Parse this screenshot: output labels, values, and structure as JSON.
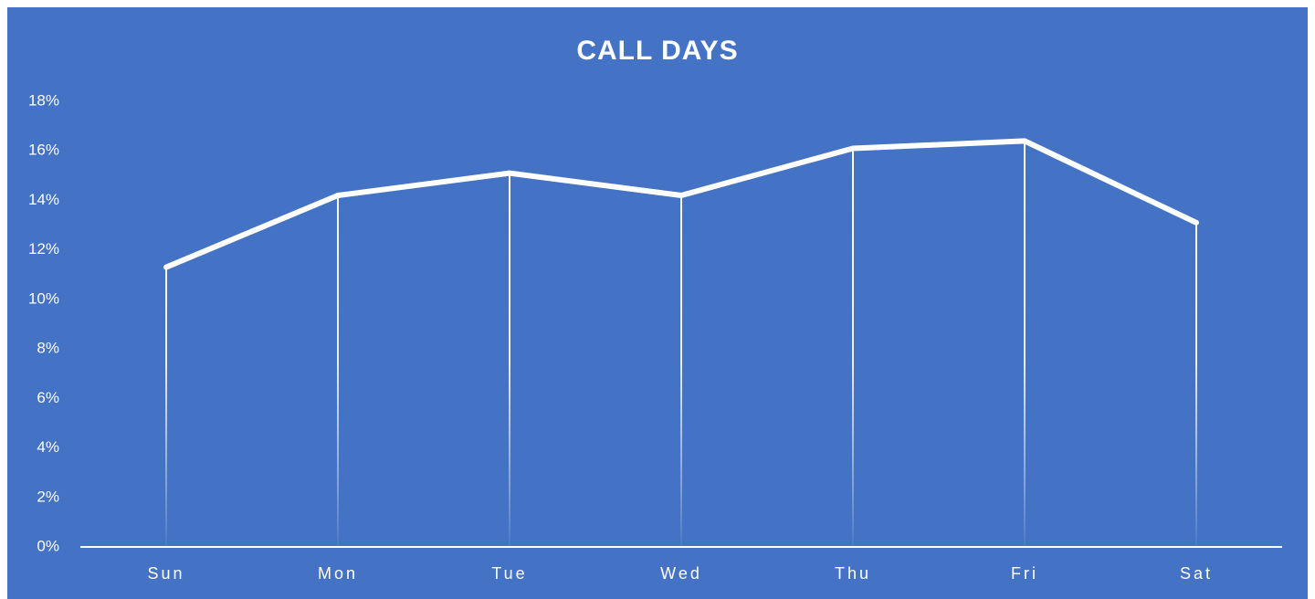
{
  "chart_data": {
    "type": "line",
    "title": "CALL DAYS",
    "categories": [
      "Sun",
      "Mon",
      "Tue",
      "Wed",
      "Thu",
      "Fri",
      "Sat"
    ],
    "values": [
      11.3,
      14.2,
      15.1,
      14.2,
      16.1,
      16.4,
      13.1
    ],
    "color": "#ffffff",
    "ylim": [
      0,
      18
    ],
    "yticks": [
      {
        "value": 0,
        "label": "0%"
      },
      {
        "value": 2,
        "label": "2%"
      },
      {
        "value": 4,
        "label": "4%"
      },
      {
        "value": 6,
        "label": "6%"
      },
      {
        "value": 8,
        "label": "8%"
      },
      {
        "value": 10,
        "label": "10%"
      },
      {
        "value": 12,
        "label": "12%"
      },
      {
        "value": 14,
        "label": "14%"
      },
      {
        "value": 16,
        "label": "16%"
      },
      {
        "value": 18,
        "label": "18%"
      }
    ],
    "grid": false,
    "drop_lines": true
  }
}
